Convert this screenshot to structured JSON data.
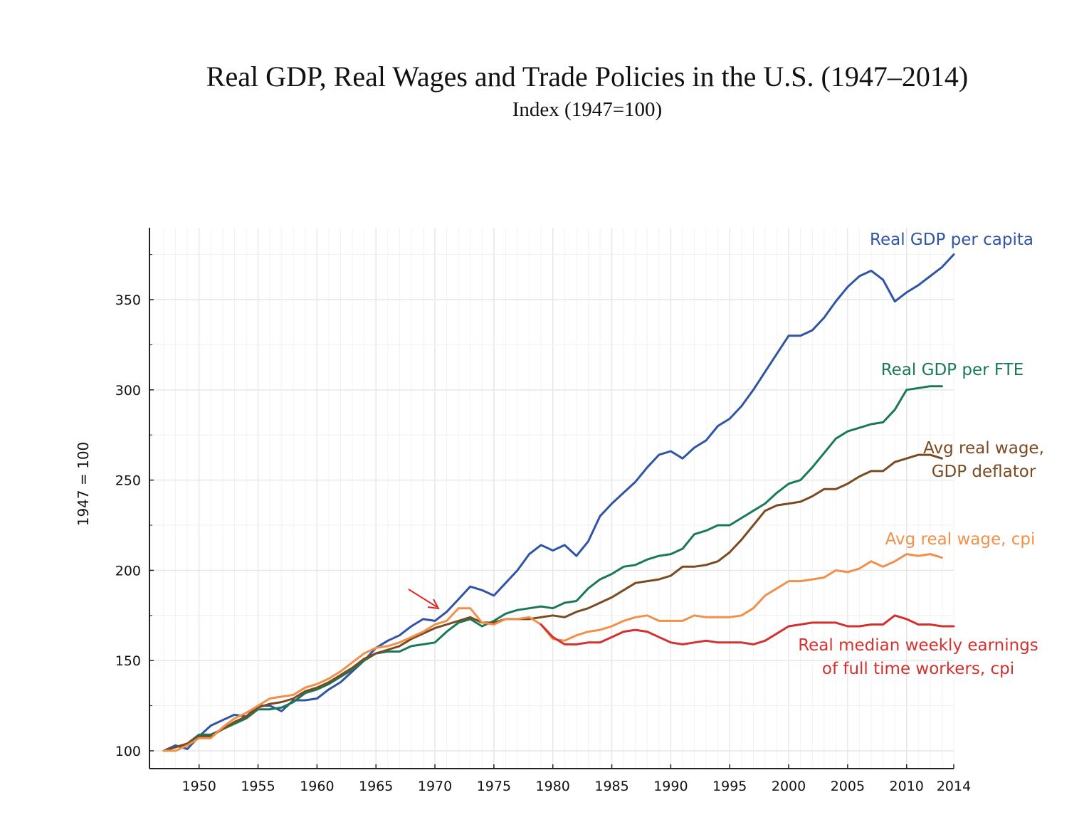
{
  "title": "Real GDP, Real Wages and Trade Policies in the U.S. (1947–2014)",
  "subtitle": "Index (1947=100)",
  "chart_data": {
    "type": "line",
    "title": "Real GDP, Real Wages and Trade Policies in the U.S. (1947–2014)",
    "subtitle": "Index (1947=100)",
    "xlabel": "",
    "ylabel": "1947 = 100",
    "xlim": [
      1947,
      2014
    ],
    "ylim": [
      95,
      390
    ],
    "x_ticks": [
      "1950",
      "1955",
      "1960",
      "1965",
      "1970",
      "1975",
      "1980",
      "1985",
      "1990",
      "1995",
      "2000",
      "2005",
      "2010",
      "2014"
    ],
    "y_ticks": [
      "100",
      "150",
      "200",
      "250",
      "300",
      "350"
    ],
    "grid": true,
    "legend": "direct labels at line ends",
    "series": [
      {
        "name": "Real GDP per capita",
        "label_lines": [
          "Real GDP per capita"
        ],
        "color": "#2f55a4",
        "x": [
          1947,
          1948,
          1949,
          1950,
          1951,
          1952,
          1953,
          1954,
          1955,
          1956,
          1957,
          1958,
          1959,
          1960,
          1961,
          1962,
          1963,
          1964,
          1965,
          1966,
          1967,
          1968,
          1969,
          1970,
          1971,
          1972,
          1973,
          1974,
          1975,
          1976,
          1977,
          1978,
          1979,
          1980,
          1981,
          1982,
          1983,
          1984,
          1985,
          1986,
          1987,
          1988,
          1989,
          1990,
          1991,
          1992,
          1993,
          1994,
          1995,
          1996,
          1997,
          1998,
          1999,
          2000,
          2001,
          2002,
          2003,
          2004,
          2005,
          2006,
          2007,
          2008,
          2009,
          2010,
          2011,
          2012,
          2013,
          2014
        ],
        "values": [
          100,
          103,
          101,
          108,
          114,
          117,
          120,
          119,
          125,
          125,
          122,
          128,
          128,
          129,
          134,
          138,
          144,
          150,
          157,
          161,
          164,
          169,
          173,
          172,
          177,
          184,
          191,
          189,
          186,
          193,
          200,
          209,
          214,
          211,
          214,
          208,
          216,
          230,
          237,
          243,
          249,
          257,
          264,
          266,
          262,
          268,
          272,
          280,
          284,
          291,
          300,
          310,
          320,
          330,
          330,
          333,
          340,
          349,
          357,
          363,
          366,
          361,
          349,
          354,
          358,
          363,
          368,
          375
        ]
      },
      {
        "name": "Real GDP per FTE",
        "label_lines": [
          "Real GDP per FTE"
        ],
        "color": "#1a7a57",
        "x": [
          1947,
          1948,
          1949,
          1950,
          1951,
          1952,
          1953,
          1954,
          1955,
          1956,
          1957,
          1958,
          1959,
          1960,
          1961,
          1962,
          1963,
          1964,
          1965,
          1966,
          1967,
          1968,
          1969,
          1970,
          1971,
          1972,
          1973,
          1974,
          1975,
          1976,
          1977,
          1978,
          1979,
          1980,
          1981,
          1982,
          1983,
          1984,
          1985,
          1986,
          1987,
          1988,
          1989,
          1990,
          1991,
          1992,
          1993,
          1994,
          1995,
          1996,
          1997,
          1998,
          1999,
          2000,
          2001,
          2002,
          2003,
          2004,
          2005,
          2006,
          2007,
          2008,
          2009,
          2010,
          2011,
          2012,
          2013
        ],
        "values": [
          100,
          102,
          104,
          109,
          109,
          112,
          115,
          118,
          123,
          123,
          124,
          127,
          132,
          134,
          137,
          141,
          145,
          150,
          154,
          155,
          155,
          158,
          159,
          160,
          166,
          171,
          173,
          169,
          172,
          176,
          178,
          179,
          180,
          179,
          182,
          183,
          190,
          195,
          198,
          202,
          203,
          206,
          208,
          209,
          212,
          220,
          222,
          225,
          225,
          229,
          233,
          237,
          243,
          248,
          250,
          257,
          265,
          273,
          277,
          279,
          281,
          282,
          289,
          300,
          301,
          302,
          302
        ]
      },
      {
        "name": "Avg real wage, GDP deflator",
        "label_lines": [
          "Avg real wage,",
          "GDP deflator"
        ],
        "color": "#7b4a20",
        "x": [
          1947,
          1948,
          1949,
          1950,
          1951,
          1952,
          1953,
          1954,
          1955,
          1956,
          1957,
          1958,
          1959,
          1960,
          1961,
          1962,
          1963,
          1964,
          1965,
          1966,
          1967,
          1968,
          1969,
          1970,
          1971,
          1972,
          1973,
          1974,
          1975,
          1976,
          1977,
          1978,
          1979,
          1980,
          1981,
          1982,
          1983,
          1984,
          1985,
          1986,
          1987,
          1988,
          1989,
          1990,
          1991,
          1992,
          1993,
          1994,
          1995,
          1996,
          1997,
          1998,
          1999,
          2000,
          2001,
          2002,
          2003,
          2004,
          2005,
          2006,
          2007,
          2008,
          2009,
          2010,
          2011,
          2012,
          2013
        ],
        "values": [
          100,
          102,
          104,
          108,
          108,
          112,
          116,
          119,
          124,
          126,
          127,
          129,
          133,
          135,
          138,
          142,
          146,
          151,
          154,
          156,
          158,
          162,
          165,
          168,
          170,
          172,
          174,
          171,
          171,
          173,
          173,
          173,
          174,
          175,
          174,
          177,
          179,
          182,
          185,
          189,
          193,
          194,
          195,
          197,
          202,
          202,
          203,
          205,
          210,
          217,
          225,
          233,
          236,
          237,
          238,
          241,
          245,
          245,
          248,
          252,
          255,
          255,
          260,
          262,
          264,
          264,
          262
        ]
      },
      {
        "name": "Avg real wage, cpi",
        "label_lines": [
          "Avg real wage, cpi"
        ],
        "color": "#f0904a",
        "x": [
          1947,
          1948,
          1949,
          1950,
          1951,
          1952,
          1953,
          1954,
          1955,
          1956,
          1957,
          1958,
          1959,
          1960,
          1961,
          1962,
          1963,
          1964,
          1965,
          1966,
          1967,
          1968,
          1969,
          1970,
          1971,
          1972,
          1973,
          1974,
          1975,
          1976,
          1977,
          1978,
          1979,
          1980,
          1981,
          1982,
          1983,
          1984,
          1985,
          1986,
          1987,
          1988,
          1989,
          1990,
          1991,
          1992,
          1993,
          1994,
          1995,
          1996,
          1997,
          1998,
          1999,
          2000,
          2001,
          2002,
          2003,
          2004,
          2005,
          2006,
          2007,
          2008,
          2009,
          2010,
          2011,
          2012,
          2013
        ],
        "values": [
          100,
          100,
          103,
          107,
          107,
          113,
          118,
          121,
          125,
          129,
          130,
          131,
          135,
          137,
          140,
          144,
          149,
          154,
          157,
          158,
          160,
          163,
          166,
          170,
          172,
          179,
          179,
          171,
          170,
          173,
          173,
          174,
          170,
          162,
          161,
          164,
          166,
          167,
          169,
          172,
          174,
          175,
          172,
          172,
          172,
          175,
          174,
          174,
          174,
          175,
          179,
          186,
          190,
          194,
          194,
          195,
          196,
          200,
          199,
          201,
          205,
          202,
          205,
          209,
          208,
          209,
          207
        ]
      },
      {
        "name": "Real median weekly earnings of full time workers, cpi",
        "label_lines": [
          "Real median weekly earnings",
          "of full time workers, cpi"
        ],
        "color": "#d3312e",
        "x": [
          1979,
          1980,
          1981,
          1982,
          1983,
          1984,
          1985,
          1986,
          1987,
          1988,
          1989,
          1990,
          1991,
          1992,
          1993,
          1994,
          1995,
          1996,
          1997,
          1998,
          1999,
          2000,
          2001,
          2002,
          2003,
          2004,
          2005,
          2006,
          2007,
          2008,
          2009,
          2010,
          2011,
          2012,
          2013,
          2014
        ],
        "values": [
          170,
          163,
          159,
          159,
          160,
          160,
          163,
          166,
          167,
          166,
          163,
          160,
          159,
          160,
          161,
          160,
          160,
          160,
          159,
          161,
          165,
          169,
          170,
          171,
          171,
          171,
          169,
          169,
          170,
          170,
          175,
          173,
          170,
          170,
          169,
          169
        ]
      }
    ]
  }
}
